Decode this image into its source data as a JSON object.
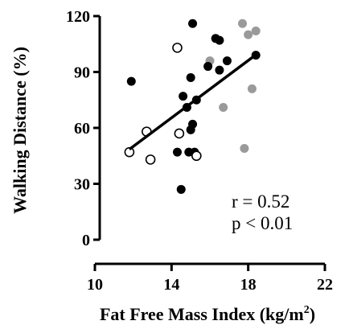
{
  "chart_data": {
    "type": "scatter",
    "title": "",
    "xlabel": "Fat Free Mass Index (kg/m",
    "xlabel_sup": "2",
    "xlabel_suffix": ")",
    "ylabel": "Walking Distance (%)",
    "xlim": [
      10,
      22
    ],
    "ylim": [
      0,
      120
    ],
    "xticks": [
      "10",
      "14",
      "18",
      "22"
    ],
    "yticks": [
      "0",
      "30",
      "60",
      "90",
      "120"
    ],
    "colors": {
      "filled": "#000000",
      "open": "#ffffff",
      "gray": "#9a9a9a"
    },
    "series": [
      {
        "style": "filled",
        "points": [
          [
            11.9,
            85
          ],
          [
            14.3,
            47
          ],
          [
            14.5,
            27
          ],
          [
            14.6,
            77
          ],
          [
            14.8,
            71
          ],
          [
            14.9,
            47
          ],
          [
            15.0,
            59
          ],
          [
            15.0,
            87
          ],
          [
            15.1,
            116
          ],
          [
            15.1,
            62
          ],
          [
            15.2,
            47
          ],
          [
            15.3,
            75
          ],
          [
            15.9,
            93
          ],
          [
            16.3,
            108
          ],
          [
            16.5,
            107
          ],
          [
            16.5,
            91
          ],
          [
            16.9,
            96
          ],
          [
            18.4,
            99
          ]
        ]
      },
      {
        "style": "open",
        "points": [
          [
            11.8,
            47
          ],
          [
            12.7,
            58
          ],
          [
            12.9,
            43
          ],
          [
            14.3,
            103
          ],
          [
            14.4,
            57
          ],
          [
            15.3,
            45
          ]
        ]
      },
      {
        "style": "gray",
        "points": [
          [
            16.0,
            96
          ],
          [
            16.7,
            71
          ],
          [
            17.7,
            116
          ],
          [
            17.8,
            49
          ],
          [
            18.0,
            110
          ],
          [
            18.2,
            81
          ],
          [
            18.4,
            112
          ]
        ]
      }
    ],
    "fit_line": {
      "x": [
        11.8,
        18.5
      ],
      "y": [
        48.5,
        100
      ]
    },
    "annotations": [
      "r = 0.52",
      "p < 0.01"
    ]
  }
}
